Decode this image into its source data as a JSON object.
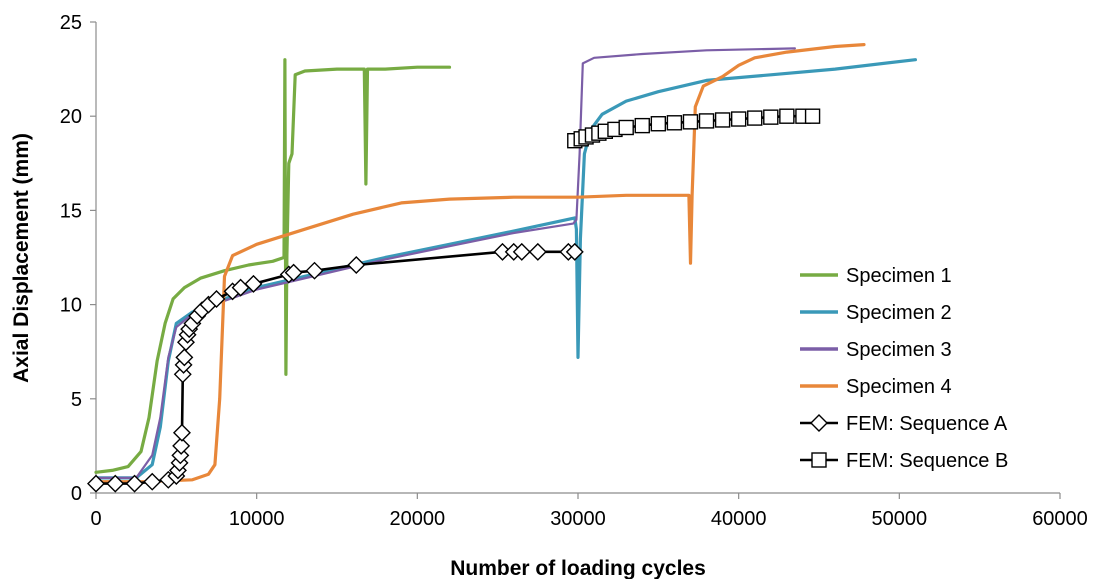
{
  "chart_data": {
    "type": "line",
    "title": "",
    "xlabel": "Number of loading cycles",
    "ylabel": "Axial Displacement (mm)",
    "xlim": [
      0,
      60000
    ],
    "ylim": [
      0,
      25
    ],
    "x_ticks": [
      "0",
      "10000",
      "20000",
      "30000",
      "40000",
      "50000",
      "60000"
    ],
    "y_ticks": [
      "0",
      "5",
      "10",
      "15",
      "20",
      "25"
    ],
    "grid": false,
    "legend_position": "right",
    "series": [
      {
        "name": "Specimen 1",
        "color": "#77AB43",
        "points": [
          [
            0,
            1.1
          ],
          [
            1000,
            1.2
          ],
          [
            2000,
            1.4
          ],
          [
            2800,
            2.2
          ],
          [
            3300,
            4.0
          ],
          [
            3800,
            7.0
          ],
          [
            4300,
            9.0
          ],
          [
            4800,
            10.3
          ],
          [
            5500,
            10.9
          ],
          [
            6500,
            11.4
          ],
          [
            8000,
            11.8
          ],
          [
            9500,
            12.1
          ],
          [
            11000,
            12.3
          ],
          [
            11700,
            12.5
          ],
          [
            11760,
            23.0
          ],
          [
            11820,
            6.3
          ],
          [
            11880,
            12.6
          ],
          [
            12000,
            17.5
          ],
          [
            12200,
            18.0
          ],
          [
            12400,
            22.2
          ],
          [
            13000,
            22.4
          ],
          [
            15000,
            22.5
          ],
          [
            16700,
            22.5
          ],
          [
            16800,
            16.4
          ],
          [
            16900,
            22.5
          ],
          [
            18000,
            22.5
          ],
          [
            20000,
            22.6
          ],
          [
            22000,
            22.6
          ]
        ]
      },
      {
        "name": "Specimen 2",
        "color": "#3A99B8",
        "points": [
          [
            0,
            0.8
          ],
          [
            2500,
            0.8
          ],
          [
            3500,
            1.5
          ],
          [
            4000,
            3.5
          ],
          [
            4500,
            7.0
          ],
          [
            5000,
            9.0
          ],
          [
            6000,
            9.6
          ],
          [
            8000,
            10.3
          ],
          [
            10000,
            10.9
          ],
          [
            14000,
            11.7
          ],
          [
            18000,
            12.5
          ],
          [
            22000,
            13.2
          ],
          [
            26000,
            13.9
          ],
          [
            29800,
            14.6
          ],
          [
            29900,
            14.0
          ],
          [
            30000,
            7.2
          ],
          [
            30150,
            13.5
          ],
          [
            30400,
            18.0
          ],
          [
            30800,
            19.3
          ],
          [
            31500,
            20.1
          ],
          [
            33000,
            20.8
          ],
          [
            35000,
            21.3
          ],
          [
            38000,
            21.9
          ],
          [
            42000,
            22.2
          ],
          [
            46000,
            22.5
          ],
          [
            51000,
            23.0
          ]
        ]
      },
      {
        "name": "Specimen 3",
        "color": "#7B5EA7",
        "points": [
          [
            0,
            0.8
          ],
          [
            2500,
            0.8
          ],
          [
            3500,
            2.0
          ],
          [
            4000,
            4.0
          ],
          [
            4500,
            7.2
          ],
          [
            5000,
            8.8
          ],
          [
            6000,
            9.5
          ],
          [
            8000,
            10.2
          ],
          [
            10000,
            10.8
          ],
          [
            14000,
            11.6
          ],
          [
            18000,
            12.4
          ],
          [
            22000,
            13.1
          ],
          [
            26000,
            13.8
          ],
          [
            29700,
            14.3
          ],
          [
            29900,
            14.5
          ],
          [
            30100,
            18.0
          ],
          [
            30300,
            22.8
          ],
          [
            31000,
            23.1
          ],
          [
            34000,
            23.3
          ],
          [
            38000,
            23.5
          ],
          [
            43500,
            23.6
          ]
        ]
      },
      {
        "name": "Specimen 4",
        "color": "#E8873A",
        "points": [
          [
            0,
            0.6
          ],
          [
            3000,
            0.6
          ],
          [
            6000,
            0.7
          ],
          [
            7000,
            1.0
          ],
          [
            7400,
            1.5
          ],
          [
            7700,
            5.0
          ],
          [
            8000,
            11.5
          ],
          [
            8500,
            12.6
          ],
          [
            10000,
            13.2
          ],
          [
            13000,
            14.0
          ],
          [
            16000,
            14.8
          ],
          [
            19000,
            15.4
          ],
          [
            22000,
            15.6
          ],
          [
            26000,
            15.7
          ],
          [
            30000,
            15.7
          ],
          [
            33000,
            15.8
          ],
          [
            36500,
            15.8
          ],
          [
            36900,
            15.8
          ],
          [
            37000,
            12.2
          ],
          [
            37100,
            15.8
          ],
          [
            37300,
            20.5
          ],
          [
            37800,
            21.6
          ],
          [
            39000,
            22.1
          ],
          [
            40000,
            22.7
          ],
          [
            41000,
            23.1
          ],
          [
            43000,
            23.4
          ],
          [
            46000,
            23.7
          ],
          [
            47800,
            23.8
          ]
        ]
      },
      {
        "name": "FEM: Sequence A",
        "color": "#000000",
        "marker": "diamond",
        "points": [
          [
            0,
            0.5
          ],
          [
            1200,
            0.5
          ],
          [
            2400,
            0.5
          ],
          [
            3500,
            0.6
          ],
          [
            4500,
            0.7
          ],
          [
            5000,
            0.9
          ],
          [
            5100,
            1.2
          ],
          [
            5200,
            1.6
          ],
          [
            5250,
            2.0
          ],
          [
            5300,
            2.5
          ],
          [
            5350,
            3.2
          ],
          [
            5400,
            6.3
          ],
          [
            5450,
            6.8
          ],
          [
            5500,
            7.2
          ],
          [
            5600,
            8.0
          ],
          [
            5700,
            8.4
          ],
          [
            5800,
            8.7
          ],
          [
            6000,
            9.0
          ],
          [
            6300,
            9.4
          ],
          [
            6600,
            9.7
          ],
          [
            7000,
            10.0
          ],
          [
            7500,
            10.3
          ],
          [
            8500,
            10.7
          ],
          [
            9000,
            10.9
          ],
          [
            9800,
            11.1
          ],
          [
            12000,
            11.6
          ],
          [
            12300,
            11.7
          ],
          [
            13600,
            11.8
          ],
          [
            16200,
            12.1
          ],
          [
            25300,
            12.8
          ],
          [
            26000,
            12.8
          ],
          [
            26500,
            12.8
          ],
          [
            27500,
            12.8
          ],
          [
            29400,
            12.8
          ],
          [
            29800,
            12.8
          ]
        ]
      },
      {
        "name": "FEM: Sequence B",
        "color": "#000000",
        "marker": "square",
        "points": [
          [
            29800,
            18.7
          ],
          [
            30200,
            18.8
          ],
          [
            30500,
            18.9
          ],
          [
            30900,
            19.0
          ],
          [
            31300,
            19.1
          ],
          [
            31700,
            19.2
          ],
          [
            32300,
            19.3
          ],
          [
            33000,
            19.4
          ],
          [
            34000,
            19.5
          ],
          [
            35000,
            19.6
          ],
          [
            36000,
            19.65
          ],
          [
            37000,
            19.7
          ],
          [
            38000,
            19.75
          ],
          [
            39000,
            19.8
          ],
          [
            40000,
            19.85
          ],
          [
            41000,
            19.9
          ],
          [
            42000,
            19.95
          ],
          [
            43000,
            20.0
          ],
          [
            44000,
            20.0
          ],
          [
            44600,
            20.0
          ]
        ]
      }
    ]
  }
}
